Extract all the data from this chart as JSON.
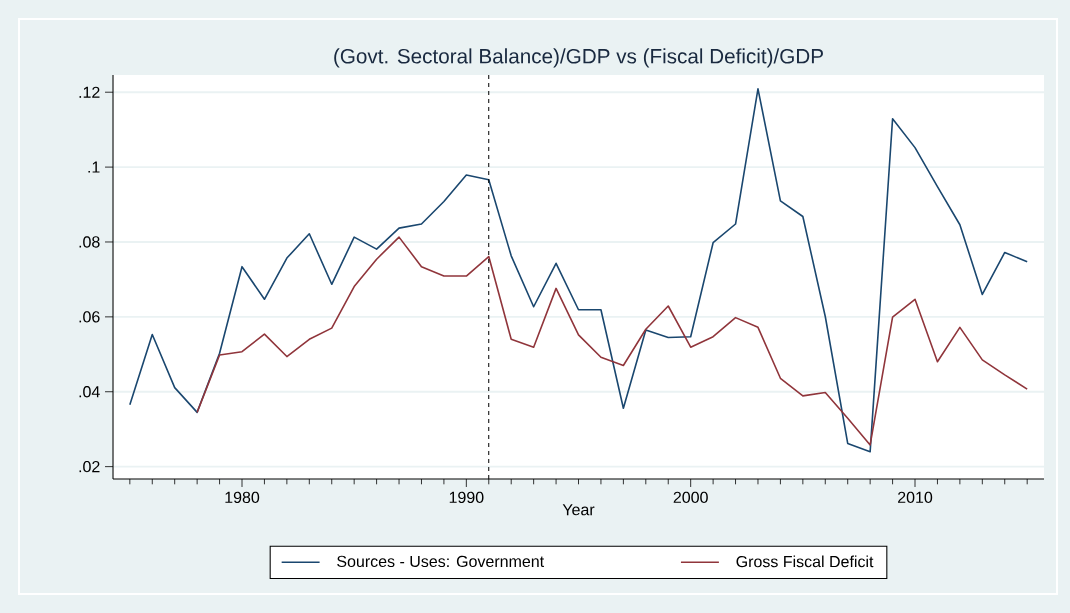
{
  "chart_data": {
    "type": "line",
    "title": "(Govt. Sectoral Balance)/GDP vs (Fiscal Deficit)/GDP",
    "xlabel": "Year",
    "x": [
      1975,
      1976,
      1977,
      1978,
      1979,
      1980,
      1981,
      1982,
      1983,
      1984,
      1985,
      1986,
      1987,
      1988,
      1989,
      1990,
      1991,
      1992,
      1993,
      1994,
      1995,
      1996,
      1997,
      1998,
      1999,
      2000,
      2001,
      2002,
      2003,
      2004,
      2005,
      2006,
      2007,
      2008,
      2009,
      2010,
      2011,
      2012,
      2013,
      2014,
      2015
    ],
    "series": [
      {
        "name": "Sources - Uses: Government",
        "color": "#1a476f",
        "values": [
          0.0365,
          0.0553,
          0.0411,
          0.0345,
          0.0503,
          0.0734,
          0.0647,
          0.0757,
          0.0822,
          0.0687,
          0.0813,
          0.0781,
          0.0837,
          0.0848,
          0.0908,
          0.0979,
          0.0966,
          0.0763,
          0.0627,
          0.0743,
          0.0619,
          0.0619,
          0.0356,
          0.0565,
          0.0545,
          0.0547,
          0.0798,
          0.0848,
          0.1209,
          0.091,
          0.0868,
          0.0601,
          0.0262,
          0.024,
          0.1129,
          0.1052,
          0.0948,
          0.0846,
          0.066,
          0.0772,
          0.0747
        ]
      },
      {
        "name": "Gross Fiscal Deficit",
        "color": "#90353b",
        "values": [
          null,
          null,
          null,
          0.0345,
          0.0498,
          0.0507,
          0.0554,
          0.0494,
          0.054,
          0.057,
          0.0681,
          0.0754,
          0.0813,
          0.0734,
          0.0709,
          0.0709,
          0.0761,
          0.054,
          0.0519,
          0.0676,
          0.0552,
          0.0492,
          0.047,
          0.0567,
          0.0629,
          0.0519,
          0.0547,
          0.0598,
          0.0572,
          0.0436,
          0.0389,
          0.0398,
          0.0329,
          0.0258,
          0.0599,
          0.0647,
          0.048,
          0.0572,
          0.0485,
          0.0445,
          0.0407
        ]
      }
    ],
    "xlim": [
      1974.25,
      2015.75
    ],
    "xticks": [
      {
        "value": 1975,
        "label": null
      },
      {
        "value": 1976,
        "label": null
      },
      {
        "value": 1977,
        "label": null
      },
      {
        "value": 1978,
        "label": null
      },
      {
        "value": 1979,
        "label": null
      },
      1980,
      {
        "value": 1981,
        "label": null
      },
      {
        "value": 1982,
        "label": null
      },
      {
        "value": 1983,
        "label": null
      },
      {
        "value": 1984,
        "label": null
      },
      {
        "value": 1985,
        "label": null
      },
      {
        "value": 1986,
        "label": null
      },
      {
        "value": 1987,
        "label": null
      },
      {
        "value": 1988,
        "label": null
      },
      {
        "value": 1989,
        "label": null
      },
      1990,
      {
        "value": 1991,
        "label": null
      },
      {
        "value": 1992,
        "label": null
      },
      {
        "value": 1993,
        "label": null
      },
      {
        "value": 1994,
        "label": null
      },
      {
        "value": 1995,
        "label": null
      },
      {
        "value": 1996,
        "label": null
      },
      {
        "value": 1997,
        "label": null
      },
      {
        "value": 1998,
        "label": null
      },
      {
        "value": 1999,
        "label": null
      },
      2000,
      {
        "value": 2001,
        "label": null
      },
      {
        "value": 2002,
        "label": null
      },
      {
        "value": 2003,
        "label": null
      },
      {
        "value": 2004,
        "label": null
      },
      {
        "value": 2005,
        "label": null
      },
      {
        "value": 2006,
        "label": null
      },
      {
        "value": 2007,
        "label": null
      },
      {
        "value": 2008,
        "label": null
      },
      {
        "value": 2009,
        "label": null
      },
      2010,
      {
        "value": 2011,
        "label": null
      },
      {
        "value": 2012,
        "label": null
      },
      {
        "value": 2013,
        "label": null
      },
      {
        "value": 2014,
        "label": null
      },
      {
        "value": 2015,
        "label": null
      }
    ],
    "ylim": [
      0.0167,
      0.1246
    ],
    "yticks": [
      {
        "value": 0.02,
        "label": ".02"
      },
      {
        "value": 0.04,
        "label": ".04"
      },
      {
        "value": 0.06,
        "label": ".06"
      },
      {
        "value": 0.08,
        "label": ".08"
      },
      {
        "value": 0.1,
        "label": ".1"
      },
      {
        "value": 0.12,
        "label": ".12"
      }
    ],
    "ref_lines": [
      {
        "axis": "x",
        "value": 1991,
        "color": "#000000",
        "line_style": "dashed"
      }
    ],
    "grid": "y",
    "legend": "bottom",
    "line_style": "solid",
    "marker": "none"
  }
}
